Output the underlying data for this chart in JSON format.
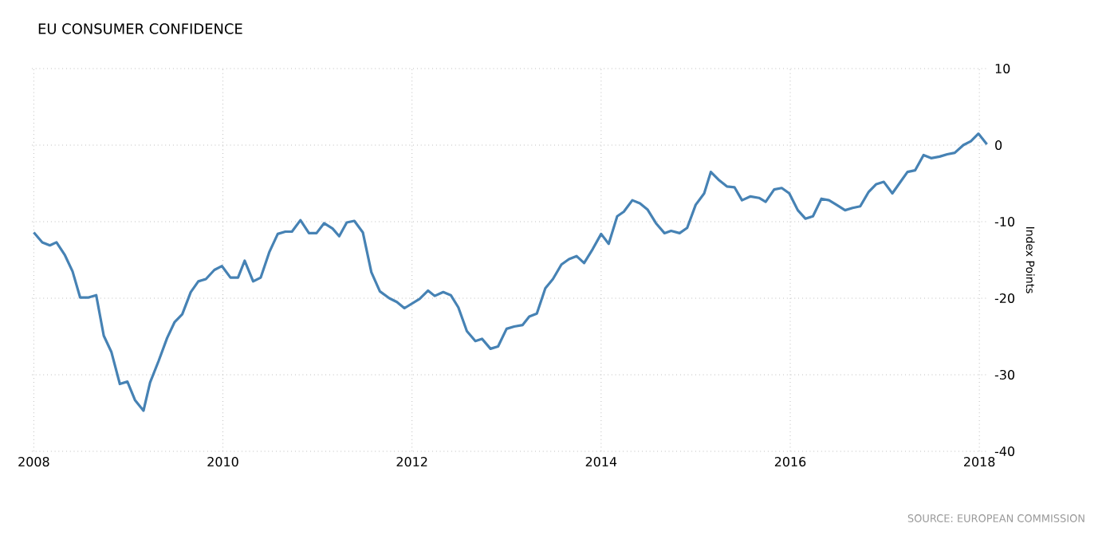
{
  "chart_data": {
    "type": "line",
    "title": "EU CONSUMER CONFIDENCE",
    "ylabel": "Index Points",
    "annotations": [
      "SOURCE: EUROPEAN COMMISSION"
    ],
    "x": [
      2008.0,
      2008.09,
      2008.17,
      2008.24,
      2008.33,
      2008.41,
      2008.49,
      2008.58,
      2008.66,
      2008.74,
      2008.82,
      2008.91,
      2008.99,
      2009.07,
      2009.16,
      2009.23,
      2009.32,
      2009.41,
      2009.49,
      2009.57,
      2009.66,
      2009.74,
      2009.82,
      2009.91,
      2009.99,
      2010.08,
      2010.16,
      2010.23,
      2010.32,
      2010.4,
      2010.49,
      2010.58,
      2010.66,
      2010.73,
      2010.82,
      2010.91,
      2010.99,
      2011.07,
      2011.16,
      2011.23,
      2011.31,
      2011.39,
      2011.48,
      2011.57,
      2011.66,
      2011.76,
      2011.84,
      2011.92,
      2012.0,
      2012.08,
      2012.17,
      2012.24,
      2012.33,
      2012.41,
      2012.49,
      2012.58,
      2012.67,
      2012.74,
      2012.83,
      2012.91,
      2013.0,
      2013.08,
      2013.17,
      2013.24,
      2013.32,
      2013.41,
      2013.49,
      2013.58,
      2013.66,
      2013.74,
      2013.82,
      2013.91,
      2014.0,
      2014.08,
      2014.17,
      2014.24,
      2014.33,
      2014.41,
      2014.49,
      2014.58,
      2014.67,
      2014.74,
      2014.83,
      2014.91,
      2015.0,
      2015.09,
      2015.16,
      2015.24,
      2015.33,
      2015.41,
      2015.49,
      2015.58,
      2015.67,
      2015.74,
      2015.83,
      2015.91,
      2015.99,
      2016.08,
      2016.16,
      2016.24,
      2016.33,
      2016.41,
      2016.49,
      2016.58,
      2016.66,
      2016.74,
      2016.83,
      2016.91,
      2016.99,
      2017.08,
      2017.16,
      2017.24,
      2017.32,
      2017.41,
      2017.49,
      2017.58,
      2017.66,
      2017.74,
      2017.83,
      2017.91,
      2017.99,
      2018.08
    ],
    "series": [
      {
        "color": "#4682b4",
        "values": [
          -11.4,
          -12.7,
          -13.1,
          -12.7,
          -14.4,
          -16.5,
          -19.9,
          -19.9,
          -19.6,
          -24.9,
          -27.0,
          -31.2,
          -30.9,
          -33.3,
          -34.7,
          -31.0,
          -28.2,
          -25.2,
          -23.1,
          -22.1,
          -19.2,
          -17.8,
          -17.5,
          -16.3,
          -15.8,
          -17.3,
          -17.3,
          -15.1,
          -17.8,
          -17.3,
          -14.0,
          -11.6,
          -11.3,
          -11.3,
          -9.8,
          -11.5,
          -11.5,
          -10.2,
          -10.9,
          -11.9,
          -10.1,
          -9.9,
          -11.4,
          -16.6,
          -19.1,
          -20.0,
          -20.5,
          -21.3,
          -20.7,
          -20.1,
          -19.0,
          -19.7,
          -19.2,
          -19.6,
          -21.2,
          -24.3,
          -25.6,
          -25.3,
          -26.6,
          -26.3,
          -24.0,
          -23.7,
          -23.5,
          -22.4,
          -22.0,
          -18.7,
          -17.5,
          -15.6,
          -14.9,
          -14.5,
          -15.4,
          -13.6,
          -11.6,
          -12.9,
          -9.3,
          -8.7,
          -7.2,
          -7.6,
          -8.4,
          -10.2,
          -11.5,
          -11.2,
          -11.5,
          -10.8,
          -7.8,
          -6.3,
          -3.5,
          -4.5,
          -5.4,
          -5.5,
          -7.2,
          -6.7,
          -6.9,
          -7.4,
          -5.8,
          -5.6,
          -6.3,
          -8.5,
          -9.6,
          -9.3,
          -7.0,
          -7.2,
          -7.8,
          -8.5,
          -8.2,
          -8.0,
          -6.1,
          -5.1,
          -4.8,
          -6.3,
          -4.9,
          -3.5,
          -3.3,
          -1.3,
          -1.7,
          -1.5,
          -1.2,
          -1.0,
          0.0,
          0.5,
          1.5,
          0.1
        ]
      }
    ],
    "xlim": [
      2007.98,
      2018.1
    ],
    "ylim": [
      -40,
      10
    ],
    "xticks": [
      2008,
      2010,
      2012,
      2014,
      2016,
      2018
    ],
    "yticks": [
      -40,
      -30,
      -20,
      -10,
      0,
      10
    ],
    "grid": true,
    "marker": "none",
    "line_style": "solid"
  }
}
